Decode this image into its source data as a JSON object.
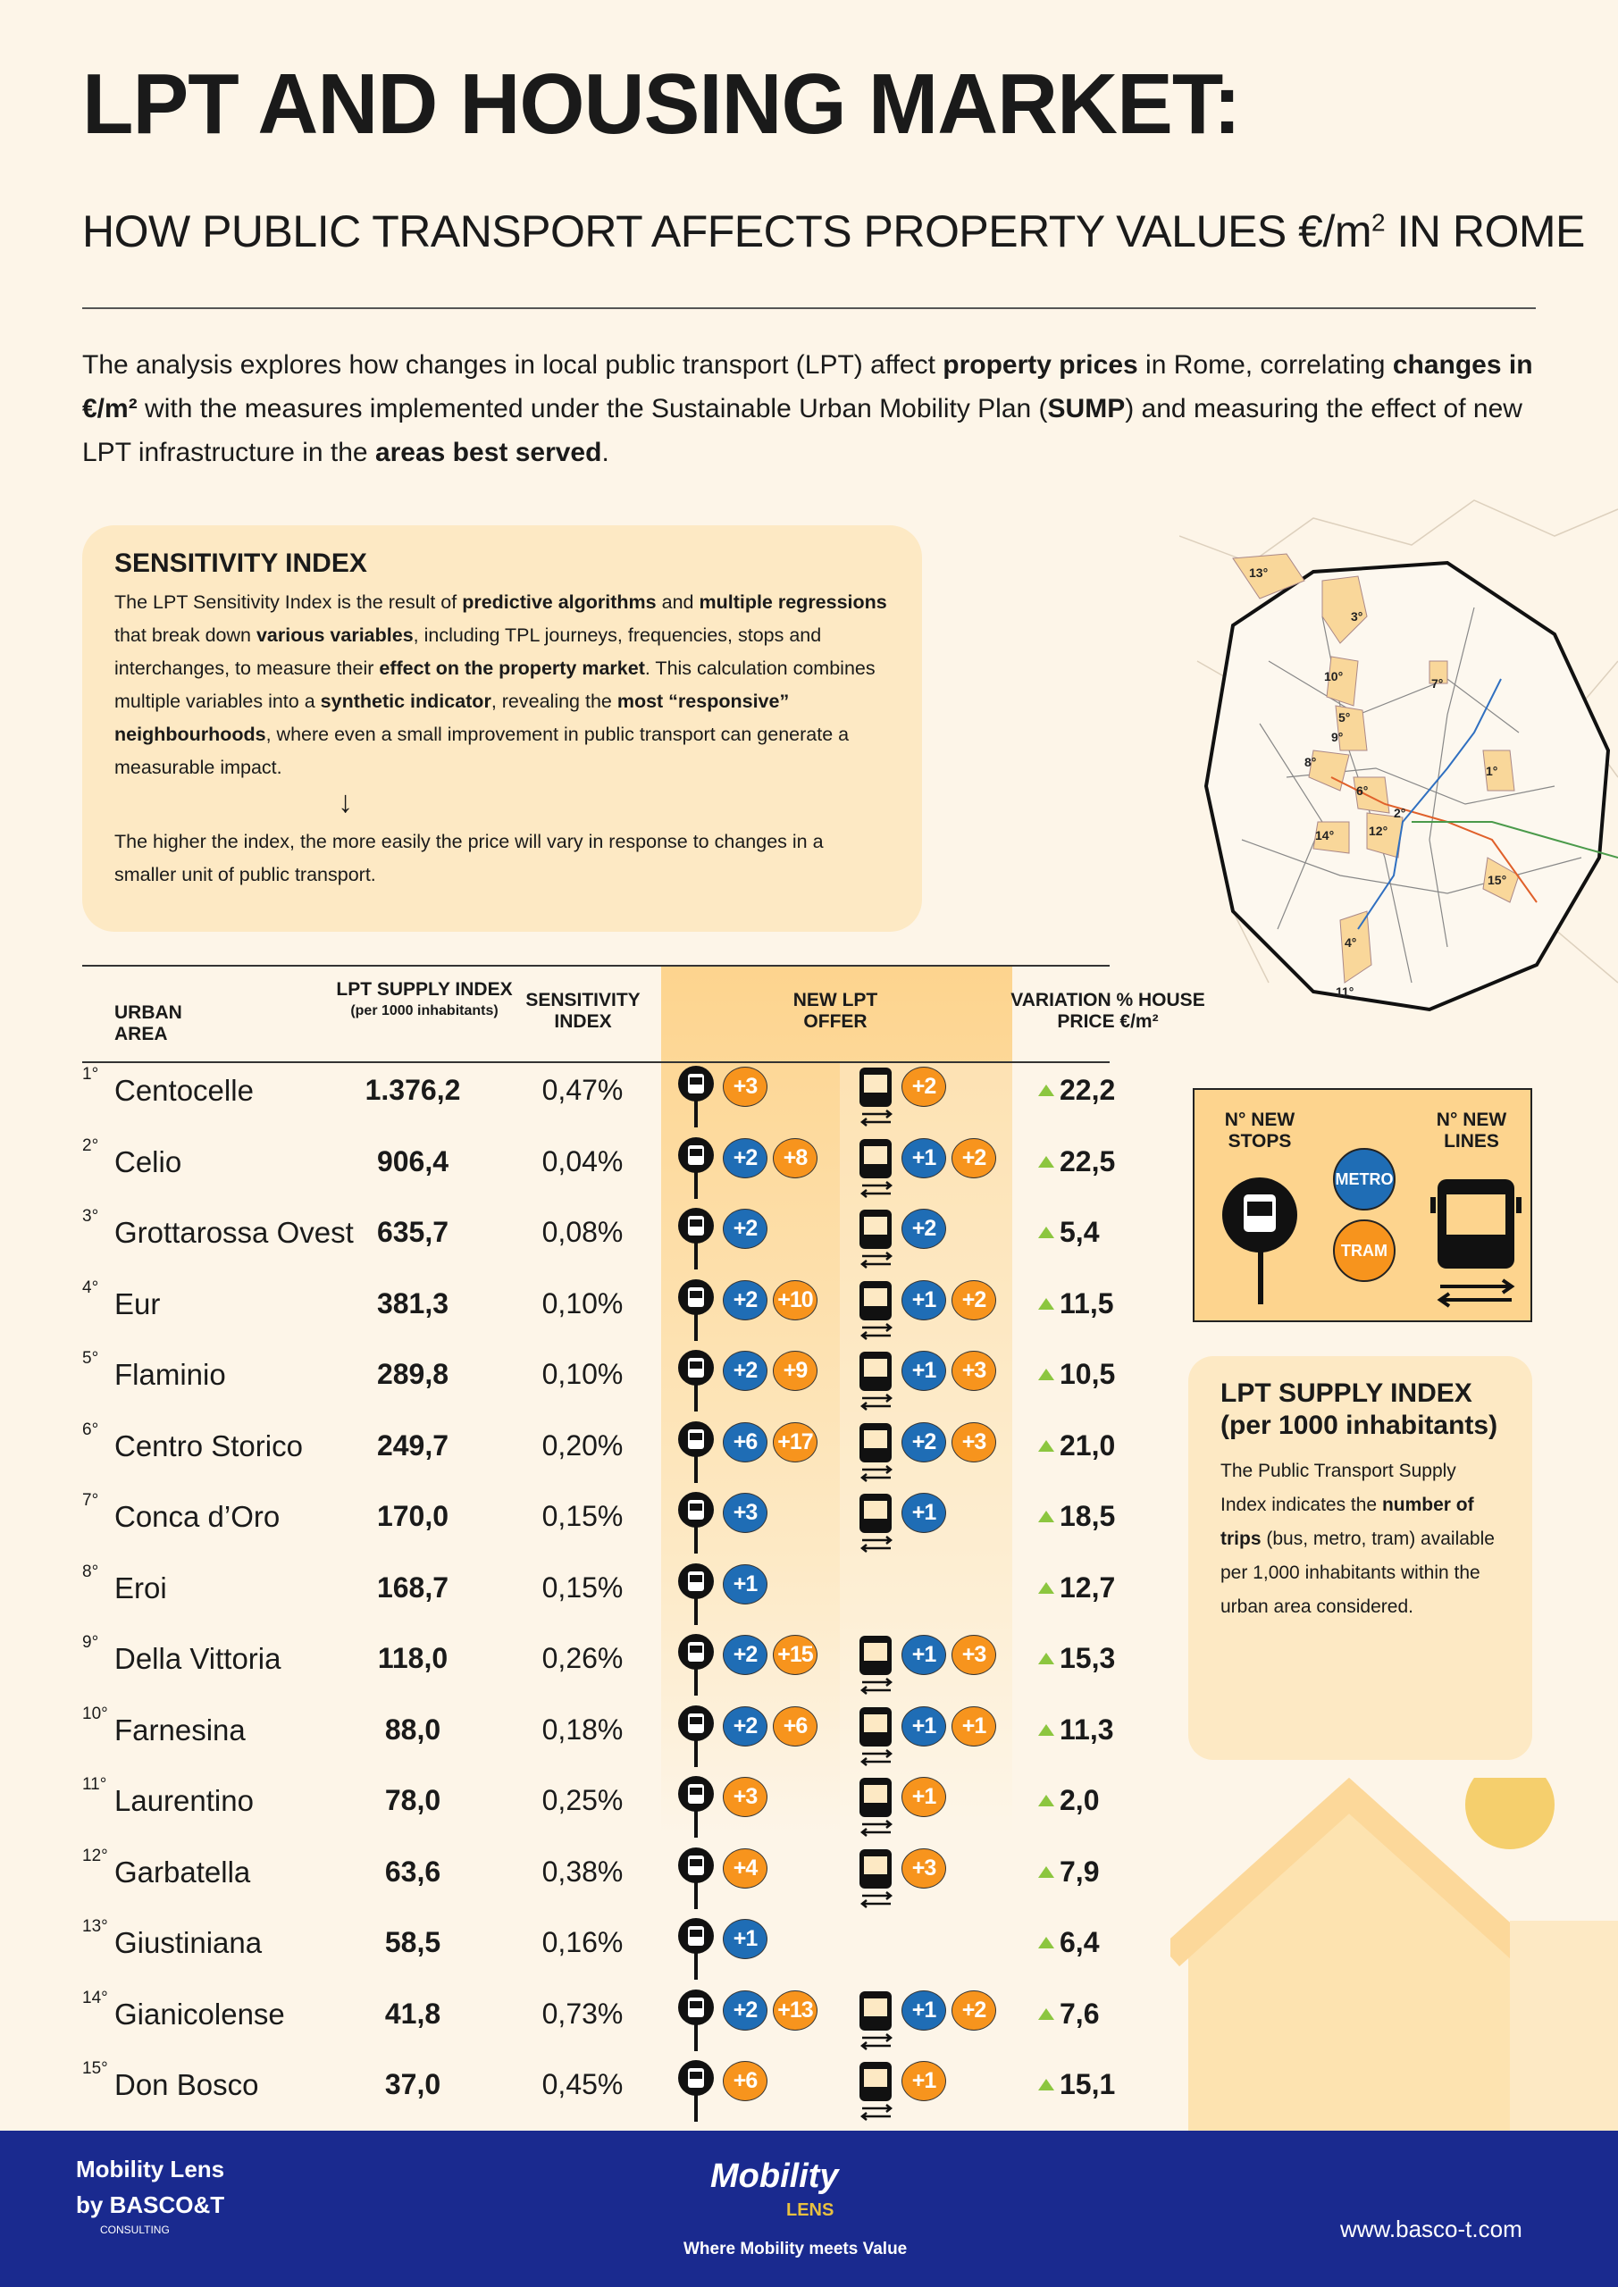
{
  "header": {
    "title": "LPT AND HOUSING MARKET:",
    "subtitle": "HOW PUBLIC TRANSPORT AFFECTS PROPERTY VALUES €/m",
    "subtitle_sup": "2",
    "subtitle_end": " IN ROME"
  },
  "intro": {
    "p1": "The analysis explores how changes in local public transport (LPT) affect ",
    "b1": "property prices",
    "p2": " in Rome, correlating ",
    "b2": "changes in €/m²",
    "p3": " with the measures implemented under the Sustainable Urban Mobility Plan (",
    "b3": "SUMP",
    "p4": ") and measuring the effect of new LPT infrastructure in the ",
    "b4": "areas best served",
    "p5": "."
  },
  "sensitivity": {
    "title": "SENSITIVITY INDEX",
    "t1": "The LPT Sensitivity Index is the result of ",
    "b1": "predictive algorithms",
    "t2": " and ",
    "b2": "multiple regressions",
    "t3": " that break down ",
    "b3": "various variables",
    "t4": ", including TPL journeys, frequencies, stops and interchanges, to measure their ",
    "b4": "effect on the property market",
    "t5": ". This calculation combines multiple variables into a ",
    "b5": "synthetic indicator",
    "t6": ", revealing the ",
    "b6": "most “responsive” neighbourhoods",
    "t7": ", where even a small improvement in public transport can generate a measurable impact.",
    "arrow": "↓",
    "note": "The higher the index, the more easily the price will vary in response to changes in a smaller unit of public transport."
  },
  "map": {
    "zones": [
      "13°",
      "3°",
      "10°",
      "7°",
      "5°",
      "9°",
      "8°",
      "6°",
      "2°",
      "1°",
      "14°",
      "12°",
      "15°",
      "4°",
      "11°"
    ]
  },
  "table": {
    "headers": {
      "area": "URBAN AREA",
      "supply": "LPT SUPPLY INDEX",
      "supply_sub": "(per 1000 inhabitants)",
      "sens": "SENSITIVITY INDEX",
      "offer": "NEW LPT OFFER",
      "variation": "VARIATION % HOUSE PRICE €/m²"
    },
    "rows": [
      {
        "n": "1°",
        "area": "Centocelle",
        "supply": "1.376,2",
        "sens": "0,47%",
        "stops": [
          {
            "v": "+3",
            "t": "tram"
          }
        ],
        "lines": [
          {
            "v": "+2",
            "t": "tram"
          }
        ],
        "var": "22,2"
      },
      {
        "n": "2°",
        "area": "Celio",
        "supply": "906,4",
        "sens": "0,04%",
        "stops": [
          {
            "v": "+2",
            "t": "metro"
          },
          {
            "v": "+8",
            "t": "tram"
          }
        ],
        "lines": [
          {
            "v": "+1",
            "t": "metro"
          },
          {
            "v": "+2",
            "t": "tram"
          }
        ],
        "var": "22,5"
      },
      {
        "n": "3°",
        "area": "Grottarossa Ovest",
        "supply": "635,7",
        "sens": "0,08%",
        "stops": [
          {
            "v": "+2",
            "t": "metro"
          }
        ],
        "lines": [
          {
            "v": "+2",
            "t": "metro"
          }
        ],
        "var": "5,4"
      },
      {
        "n": "4°",
        "area": "Eur",
        "supply": "381,3",
        "sens": "0,10%",
        "stops": [
          {
            "v": "+2",
            "t": "metro"
          },
          {
            "v": "+10",
            "t": "tram"
          }
        ],
        "lines": [
          {
            "v": "+1",
            "t": "metro"
          },
          {
            "v": "+2",
            "t": "tram"
          }
        ],
        "var": "11,5"
      },
      {
        "n": "5°",
        "area": "Flaminio",
        "supply": "289,8",
        "sens": "0,10%",
        "stops": [
          {
            "v": "+2",
            "t": "metro"
          },
          {
            "v": "+9",
            "t": "tram"
          }
        ],
        "lines": [
          {
            "v": "+1",
            "t": "metro"
          },
          {
            "v": "+3",
            "t": "tram"
          }
        ],
        "var": "10,5"
      },
      {
        "n": "6°",
        "area": "Centro Storico",
        "supply": "249,7",
        "sens": "0,20%",
        "stops": [
          {
            "v": "+6",
            "t": "metro"
          },
          {
            "v": "+17",
            "t": "tram"
          }
        ],
        "lines": [
          {
            "v": "+2",
            "t": "metro"
          },
          {
            "v": "+3",
            "t": "tram"
          }
        ],
        "var": "21,0"
      },
      {
        "n": "7°",
        "area": "Conca d’Oro",
        "supply": "170,0",
        "sens": "0,15%",
        "stops": [
          {
            "v": "+3",
            "t": "metro"
          }
        ],
        "lines": [
          {
            "v": "+1",
            "t": "metro"
          }
        ],
        "var": "18,5"
      },
      {
        "n": "8°",
        "area": "Eroi",
        "supply": "168,7",
        "sens": "0,15%",
        "stops": [
          {
            "v": "+1",
            "t": "metro"
          }
        ],
        "lines": [],
        "var": "12,7"
      },
      {
        "n": "9°",
        "area": "Della Vittoria",
        "supply": "118,0",
        "sens": "0,26%",
        "stops": [
          {
            "v": "+2",
            "t": "metro"
          },
          {
            "v": "+15",
            "t": "tram"
          }
        ],
        "lines": [
          {
            "v": "+1",
            "t": "metro"
          },
          {
            "v": "+3",
            "t": "tram"
          }
        ],
        "var": "15,3"
      },
      {
        "n": "10°",
        "area": "Farnesina",
        "supply": "88,0",
        "sens": "0,18%",
        "stops": [
          {
            "v": "+2",
            "t": "metro"
          },
          {
            "v": "+6",
            "t": "tram"
          }
        ],
        "lines": [
          {
            "v": "+1",
            "t": "metro"
          },
          {
            "v": "+1",
            "t": "tram"
          }
        ],
        "var": "11,3"
      },
      {
        "n": "11°",
        "area": "Laurentino",
        "supply": "78,0",
        "sens": "0,25%",
        "stops": [
          {
            "v": "+3",
            "t": "tram"
          }
        ],
        "lines": [
          {
            "v": "+1",
            "t": "tram"
          }
        ],
        "var": "2,0"
      },
      {
        "n": "12°",
        "area": "Garbatella",
        "supply": "63,6",
        "sens": "0,38%",
        "stops": [
          {
            "v": "+4",
            "t": "tram"
          }
        ],
        "lines": [
          {
            "v": "+3",
            "t": "tram"
          }
        ],
        "var": "7,9"
      },
      {
        "n": "13°",
        "area": "Giustiniana",
        "supply": "58,5",
        "sens": "0,16%",
        "stops": [
          {
            "v": "+1",
            "t": "metro"
          }
        ],
        "lines": [],
        "var": "6,4"
      },
      {
        "n": "14°",
        "area": "Gianicolense",
        "supply": "41,8",
        "sens": "0,73%",
        "stops": [
          {
            "v": "+2",
            "t": "metro"
          },
          {
            "v": "+13",
            "t": "tram"
          }
        ],
        "lines": [
          {
            "v": "+1",
            "t": "metro"
          },
          {
            "v": "+2",
            "t": "tram"
          }
        ],
        "var": "7,6"
      },
      {
        "n": "15°",
        "area": "Don Bosco",
        "supply": "37,0",
        "sens": "0,45%",
        "stops": [
          {
            "v": "+6",
            "t": "tram"
          }
        ],
        "lines": [
          {
            "v": "+1",
            "t": "tram"
          }
        ],
        "var": "15,1"
      }
    ]
  },
  "legend": {
    "stops": "N° NEW STOPS",
    "lines": "N° NEW LINES",
    "metro": "METRO",
    "tram": "TRAM"
  },
  "supply_box": {
    "title": "LPT SUPPLY INDEX (per 1000 inhabitants)",
    "t1": "The Public Transport Supply Index indicates the ",
    "b1": "number of trips",
    "t2": " (bus, metro, tram) available per 1,000 inhabitants within the urban area considered."
  },
  "footer": {
    "brand": "Mobility Lens",
    "by": "by BASCO&T",
    "consulting": "CONSULTING",
    "logo_main": "Mobility",
    "logo_sub": "LENS",
    "tagline": "Where Mobility meets Value",
    "url": "www.basco-t.com"
  },
  "colors": {
    "metro": "#1f6db5",
    "tram": "#f7941d",
    "up": "#8cc63f",
    "footer": "#1a2a8f",
    "panel": "#fde9c4"
  }
}
